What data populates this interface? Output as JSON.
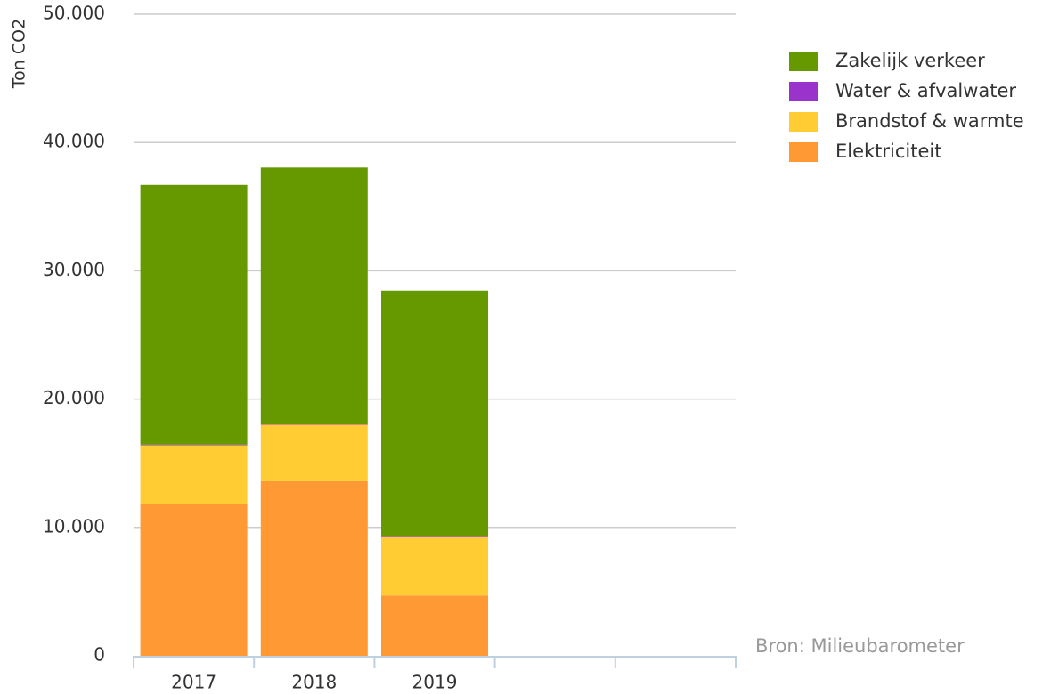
{
  "chart_data": {
    "type": "stacked_bar",
    "y_label": "Ton CO2",
    "source": "Bron: Milieubarometer",
    "categories": [
      "2017",
      "2018",
      "2019",
      null,
      null
    ],
    "series": [
      {
        "name": "Zakelijk verkeer",
        "color": "#669900",
        "values": [
          20250,
          20000,
          19100,
          null,
          null
        ]
      },
      {
        "name": "Water & afvalwater",
        "color": "#9933cc",
        "values": [
          50,
          50,
          50,
          null,
          null
        ]
      },
      {
        "name": "Brandstof & warmte",
        "color": "#ffcc33",
        "values": [
          4600,
          4400,
          4600,
          null,
          null
        ]
      },
      {
        "name": "Elektriciteit",
        "color": "#ff9933",
        "values": [
          11800,
          13600,
          4700,
          null,
          null
        ]
      }
    ],
    "ylim": [
      0,
      50000
    ],
    "yticks": [
      0,
      {
        "value": 10000,
        "label": "10.000"
      },
      {
        "value": 20000,
        "label": "20.000"
      },
      {
        "value": 30000,
        "label": "30.000"
      },
      {
        "value": 40000,
        "label": "40.000"
      },
      {
        "value": 50000,
        "label": "50.000"
      }
    ],
    "grid": true,
    "legend": "right"
  }
}
